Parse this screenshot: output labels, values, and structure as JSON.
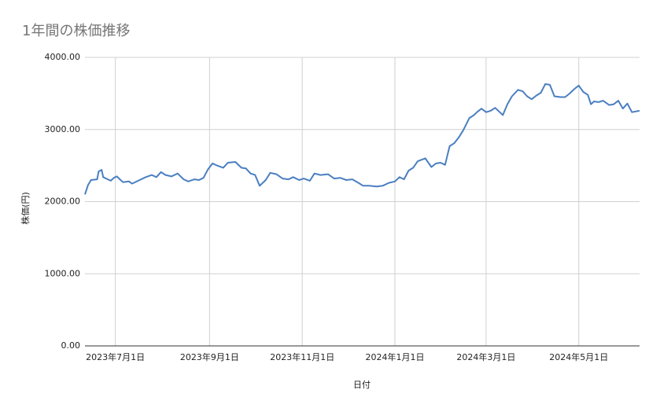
{
  "chart_data": {
    "type": "line",
    "title": "1年間の株価推移",
    "x_label": "日付",
    "y_label": "株価(円)",
    "x": [
      "2023-06-11",
      "2023-06-13",
      "2023-06-15",
      "2023-06-19",
      "2023-06-20",
      "2023-06-22",
      "2023-06-23",
      "2023-06-26",
      "2023-06-28",
      "2023-06-30",
      "2023-07-02",
      "2023-07-04",
      "2023-07-06",
      "2023-07-10",
      "2023-07-12",
      "2023-07-17",
      "2023-07-21",
      "2023-07-25",
      "2023-07-28",
      "2023-07-31",
      "2023-08-03",
      "2023-08-07",
      "2023-08-11",
      "2023-08-15",
      "2023-08-18",
      "2023-08-22",
      "2023-08-25",
      "2023-08-28",
      "2023-08-31",
      "2023-09-03",
      "2023-09-06",
      "2023-09-10",
      "2023-09-13",
      "2023-09-18",
      "2023-09-22",
      "2023-09-25",
      "2023-09-28",
      "2023-10-01",
      "2023-10-04",
      "2023-10-08",
      "2023-10-11",
      "2023-10-15",
      "2023-10-19",
      "2023-10-23",
      "2023-10-26",
      "2023-10-30",
      "2023-11-02",
      "2023-11-06",
      "2023-11-09",
      "2023-11-13",
      "2023-11-18",
      "2023-11-22",
      "2023-11-26",
      "2023-11-30",
      "2023-12-04",
      "2023-12-08",
      "2023-12-11",
      "2023-12-15",
      "2023-12-20",
      "2023-12-24",
      "2023-12-28",
      "2024-01-01",
      "2024-01-04",
      "2024-01-07",
      "2024-01-10",
      "2024-01-13",
      "2024-01-16",
      "2024-01-21",
      "2024-01-25",
      "2024-01-28",
      "2024-01-31",
      "2024-02-03",
      "2024-02-06",
      "2024-02-09",
      "2024-02-12",
      "2024-02-15",
      "2024-02-19",
      "2024-02-22",
      "2024-02-24",
      "2024-02-27",
      "2024-03-01",
      "2024-03-04",
      "2024-03-07",
      "2024-03-10",
      "2024-03-12",
      "2024-03-15",
      "2024-03-18",
      "2024-03-22",
      "2024-03-25",
      "2024-03-28",
      "2024-03-31",
      "2024-04-03",
      "2024-04-06",
      "2024-04-09",
      "2024-04-12",
      "2024-04-15",
      "2024-04-19",
      "2024-04-22",
      "2024-04-25",
      "2024-04-28",
      "2024-05-01",
      "2024-05-04",
      "2024-05-07",
      "2024-05-09",
      "2024-05-11",
      "2024-05-14",
      "2024-05-17",
      "2024-05-21",
      "2024-05-24",
      "2024-05-27",
      "2024-05-30",
      "2024-06-02",
      "2024-06-05",
      "2024-06-10"
    ],
    "values": [
      2100,
      2230,
      2300,
      2310,
      2420,
      2440,
      2340,
      2310,
      2290,
      2330,
      2350,
      2310,
      2270,
      2280,
      2250,
      2300,
      2340,
      2370,
      2340,
      2410,
      2370,
      2350,
      2390,
      2310,
      2280,
      2310,
      2300,
      2330,
      2450,
      2530,
      2500,
      2470,
      2540,
      2550,
      2470,
      2460,
      2390,
      2370,
      2220,
      2300,
      2400,
      2380,
      2320,
      2310,
      2340,
      2300,
      2320,
      2290,
      2390,
      2370,
      2380,
      2320,
      2330,
      2300,
      2310,
      2260,
      2220,
      2220,
      2210,
      2220,
      2260,
      2280,
      2340,
      2310,
      2430,
      2470,
      2560,
      2600,
      2480,
      2530,
      2540,
      2510,
      2770,
      2810,
      2890,
      2990,
      3160,
      3200,
      3240,
      3290,
      3240,
      3260,
      3300,
      3240,
      3200,
      3350,
      3460,
      3550,
      3530,
      3460,
      3420,
      3470,
      3510,
      3630,
      3620,
      3460,
      3450,
      3450,
      3500,
      3560,
      3610,
      3520,
      3480,
      3350,
      3390,
      3380,
      3400,
      3340,
      3350,
      3400,
      3290,
      3360,
      3240,
      3260
    ],
    "color": "#4a7fc1",
    "xlim": [
      "2023-06-11",
      "2024-06-10"
    ],
    "xticks": [
      {
        "value": "2023-07-01",
        "label": "2023年7月1日"
      },
      {
        "value": "2023-09-01",
        "label": "2023年9月1日"
      },
      {
        "value": "2023-11-01",
        "label": "2023年11月1日"
      },
      {
        "value": "2024-01-01",
        "label": "2024年1月1日"
      },
      {
        "value": "2024-03-01",
        "label": "2024年3月1日"
      },
      {
        "value": "2024-05-01",
        "label": "2024年5月1日"
      }
    ],
    "ylim": [
      0,
      4000
    ],
    "yticks": [
      {
        "value": 0,
        "label": "0.00"
      },
      {
        "value": 1000,
        "label": "1000.00"
      },
      {
        "value": 2000,
        "label": "2000.00"
      },
      {
        "value": 3000,
        "label": "3000.00"
      },
      {
        "value": 4000,
        "label": "4000.00"
      }
    ],
    "grid": true
  }
}
